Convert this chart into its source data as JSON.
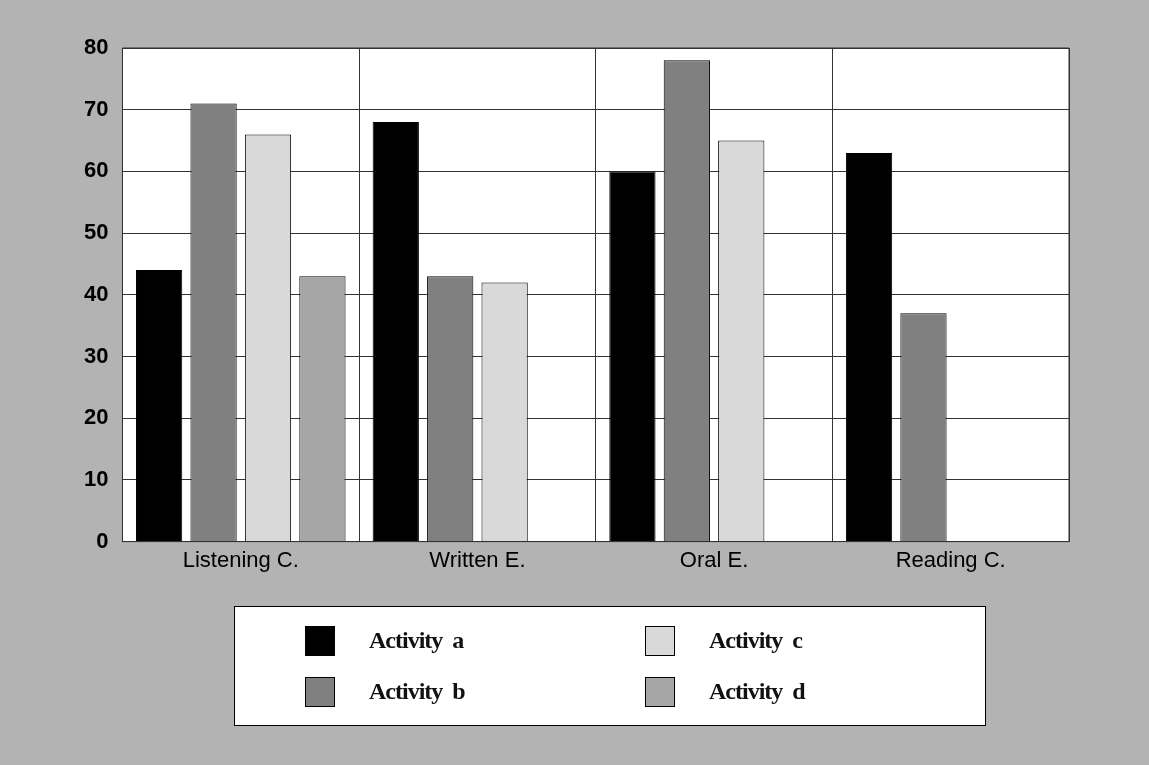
{
  "chart_data": {
    "type": "bar",
    "categories": [
      "Listening C.",
      "Written E.",
      "Oral E.",
      "Reading C."
    ],
    "series": [
      {
        "name": "Activity  a",
        "color": "#000000",
        "values": [
          44,
          68,
          60,
          63
        ]
      },
      {
        "name": "Activity  b",
        "color": "#808080",
        "values": [
          71,
          43,
          78,
          37
        ]
      },
      {
        "name": "Activity  c",
        "color": "#d9d9d9",
        "values": [
          66,
          42,
          65,
          null
        ]
      },
      {
        "name": "Activity  d",
        "color": "#a6a6a6",
        "values": [
          43,
          null,
          null,
          null
        ]
      }
    ],
    "ylim": [
      0,
      80
    ],
    "yticks": [
      0,
      10,
      20,
      30,
      40,
      50,
      60,
      70,
      80
    ],
    "grid": true,
    "legend": "bottom"
  }
}
